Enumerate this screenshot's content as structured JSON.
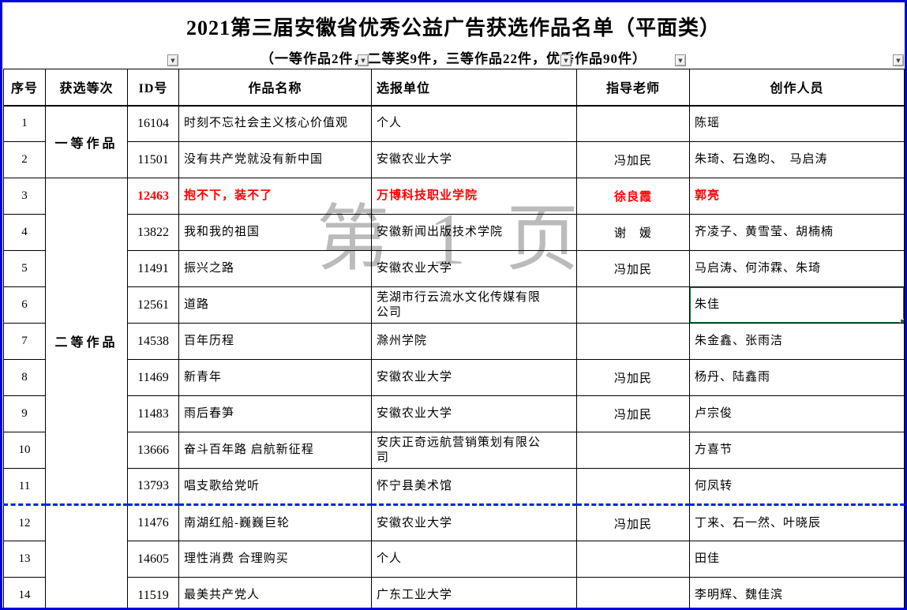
{
  "title": "2021第三届安徽省优秀公益广告获选作品名单（平面类）",
  "subtitle": "（一等作品2件，二等奖9件，三等作品22件，优秀作品90件）",
  "watermark": "第 1 页",
  "filter": {
    "icon": "▼"
  },
  "columns": [
    "序号",
    "获选等次",
    "ID号",
    "作品名称",
    "选报单位",
    "指导老师",
    "创作人员"
  ],
  "award_groups": [
    {
      "label": "一等作品",
      "span": 2
    },
    {
      "label": "二等作品",
      "span": 9
    },
    {
      "label": "",
      "span": 3
    }
  ],
  "rows": [
    {
      "no": "1",
      "id": "16104",
      "title": "时刻不忘社会主义核心价值观",
      "unit": "个人",
      "advisor": "",
      "creators": "陈瑶"
    },
    {
      "no": "2",
      "id": "11501",
      "title": "没有共产党就没有新中国",
      "unit": "安徽农业大学",
      "advisor": "冯加民",
      "creators": "朱琦、石逸昀、　马启涛"
    },
    {
      "no": "3",
      "id": "12463",
      "title": "抱不下，装不了",
      "unit": "万博科技职业学院",
      "advisor": "徐良霞",
      "creators": "郭亮",
      "red": true
    },
    {
      "no": "4",
      "id": "13822",
      "title": "我和我的祖国",
      "unit": "安徽新闻出版技术学院",
      "advisor": "谢　媛",
      "creators": "齐凌子、黄雪莹、胡楠楠"
    },
    {
      "no": "5",
      "id": "11491",
      "title": "振兴之路",
      "unit": "安徽农业大学",
      "advisor": "冯加民",
      "creators": "马启涛、何沛霖、朱琦"
    },
    {
      "no": "6",
      "id": "12561",
      "title": "道路",
      "unit": "芜湖市行云流水文化传媒有限\n公司",
      "advisor": "",
      "creators": "朱佳",
      "selected": true
    },
    {
      "no": "7",
      "id": "14538",
      "title": "百年历程",
      "unit": "滁州学院",
      "advisor": "",
      "creators": "朱金鑫、张雨洁"
    },
    {
      "no": "8",
      "id": "11469",
      "title": "新青年",
      "unit": "安徽农业大学",
      "advisor": "冯加民",
      "creators": "杨丹、陆鑫雨"
    },
    {
      "no": "9",
      "id": "11483",
      "title": "雨后春笋",
      "unit": "安徽农业大学",
      "advisor": "冯加民",
      "creators": "卢宗俊"
    },
    {
      "no": "10",
      "id": "13666",
      "title": "奋斗百年路 启航新征程",
      "unit": "安庆正奇远航营销策划有限公\n司",
      "advisor": "",
      "creators": "方喜节"
    },
    {
      "no": "11",
      "id": "13793",
      "title": "唱支歌给党听",
      "unit": "怀宁县美术馆",
      "advisor": "",
      "creators": "何凤转"
    },
    {
      "no": "12",
      "id": "11476",
      "title": "南湖红船-巍巍巨轮",
      "unit": "安徽农业大学",
      "advisor": "冯加民",
      "creators": "丁来、石一然、叶晓辰",
      "pageBreakBefore": true
    },
    {
      "no": "13",
      "id": "14605",
      "title": "理性消费 合理购买",
      "unit": "个人",
      "advisor": "",
      "creators": "田佳"
    },
    {
      "no": "14",
      "id": "11519",
      "title": "最美共产党人",
      "unit": "广东工业大学",
      "advisor": "",
      "creators": "李明辉、魏佳滨"
    }
  ],
  "colors": {
    "window_border": "#0000dd",
    "red_text": "#ff0000",
    "selection_green": "#1f7345",
    "page_break_blue": "#0022f0",
    "watermark_gray": "#a2a2a2"
  }
}
